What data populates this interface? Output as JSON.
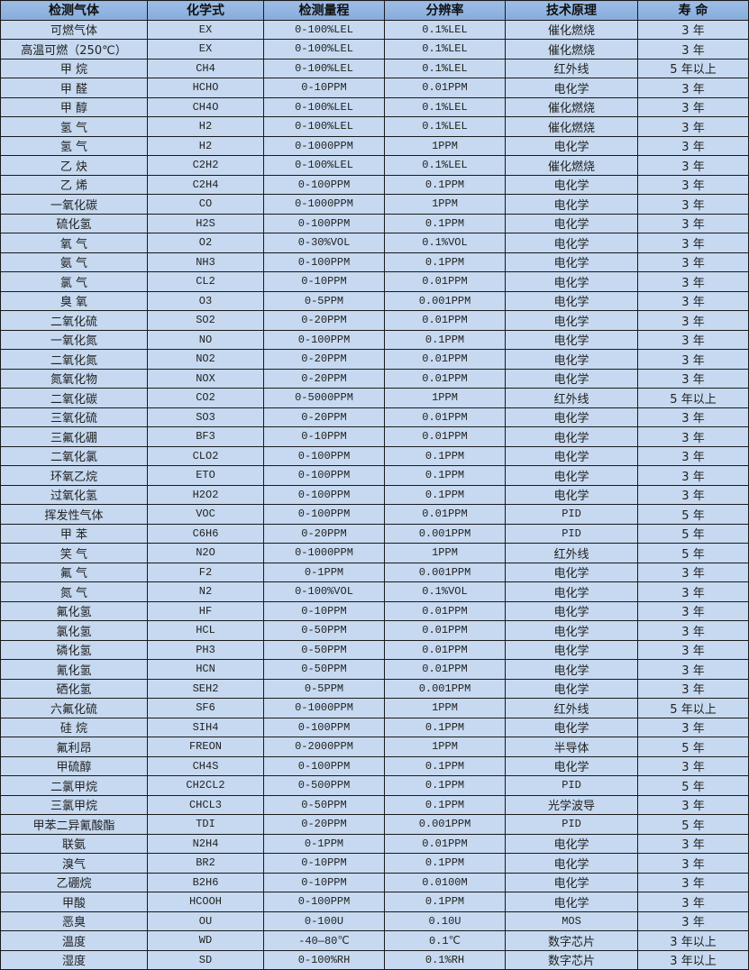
{
  "table": {
    "headers": [
      "检测气体",
      "化学式",
      "检测量程",
      "分辨率",
      "技术原理",
      "寿 命"
    ],
    "rows": [
      [
        "可燃气体",
        "EX",
        "0-100%LEL",
        "0.1%LEL",
        "催化燃烧",
        "3 年"
      ],
      [
        "高温可燃（250℃）",
        "EX",
        "0-100%LEL",
        "0.1%LEL",
        "催化燃烧",
        "3 年"
      ],
      [
        "甲 烷",
        "CH4",
        "0-100%LEL",
        "0.1%LEL",
        "红外线",
        "5 年以上"
      ],
      [
        "甲 醛",
        "HCHO",
        "0-10PPM",
        "0.01PPM",
        "电化学",
        "3 年"
      ],
      [
        "甲 醇",
        "CH4O",
        "0-100%LEL",
        "0.1%LEL",
        "催化燃烧",
        "3 年"
      ],
      [
        "氢 气",
        "H2",
        "0-100%LEL",
        "0.1%LEL",
        "催化燃烧",
        "3 年"
      ],
      [
        "氢 气",
        "H2",
        "0-1000PPM",
        "1PPM",
        "电化学",
        "3 年"
      ],
      [
        "乙 炔",
        "C2H2",
        "0-100%LEL",
        "0.1%LEL",
        "催化燃烧",
        "3 年"
      ],
      [
        "乙 烯",
        "C2H4",
        "0-100PPM",
        "0.1PPM",
        "电化学",
        "3 年"
      ],
      [
        "一氧化碳",
        "CO",
        "0-1000PPM",
        "1PPM",
        "电化学",
        "3 年"
      ],
      [
        "硫化氢",
        "H2S",
        "0-100PPM",
        "0.1PPM",
        "电化学",
        "3 年"
      ],
      [
        "氧 气",
        "O2",
        "0-30%VOL",
        "0.1%VOL",
        "电化学",
        "3 年"
      ],
      [
        "氨 气",
        "NH3",
        "0-100PPM",
        "0.1PPM",
        "电化学",
        "3 年"
      ],
      [
        "氯 气",
        "CL2",
        "0-10PPM",
        "0.01PPM",
        "电化学",
        "3 年"
      ],
      [
        "臭 氧",
        "O3",
        "0-5PPM",
        "0.001PPM",
        "电化学",
        "3 年"
      ],
      [
        "二氧化硫",
        "SO2",
        "0-20PPM",
        "0.01PPM",
        "电化学",
        "3 年"
      ],
      [
        "一氧化氮",
        "NO",
        "0-100PPM",
        "0.1PPM",
        "电化学",
        "3 年"
      ],
      [
        "二氧化氮",
        "NO2",
        "0-20PPM",
        "0.01PPM",
        "电化学",
        "3 年"
      ],
      [
        "氮氧化物",
        "NOX",
        "0-20PPM",
        "0.01PPM",
        "电化学",
        "3 年"
      ],
      [
        "二氧化碳",
        "CO2",
        "0-5000PPM",
        "1PPM",
        "红外线",
        "5 年以上"
      ],
      [
        "三氧化硫",
        "SO3",
        "0-20PPM",
        "0.01PPM",
        "电化学",
        "3 年"
      ],
      [
        "三氟化硼",
        "BF3",
        "0-10PPM",
        "0.01PPM",
        "电化学",
        "3 年"
      ],
      [
        "二氧化氯",
        "CLO2",
        "0-100PPM",
        "0.1PPM",
        "电化学",
        "3 年"
      ],
      [
        "环氧乙烷",
        "ETO",
        "0-100PPM",
        "0.1PPM",
        "电化学",
        "3 年"
      ],
      [
        "过氧化氢",
        "H2O2",
        "0-100PPM",
        "0.1PPM",
        "电化学",
        "3 年"
      ],
      [
        "挥发性气体",
        "VOC",
        "0-100PPM",
        "0.01PPM",
        "PID",
        "5 年"
      ],
      [
        "甲 苯",
        "C6H6",
        "0-20PPM",
        "0.001PPM",
        "PID",
        "5 年"
      ],
      [
        "笑 气",
        "N2O",
        "0-1000PPM",
        "1PPM",
        "红外线",
        "5 年"
      ],
      [
        "氟 气",
        "F2",
        "0-1PPM",
        "0.001PPM",
        "电化学",
        "3 年"
      ],
      [
        "氮 气",
        "N2",
        "0-100%VOL",
        "0.1%VOL",
        "电化学",
        "3 年"
      ],
      [
        "氟化氢",
        "HF",
        "0-10PPM",
        "0.01PPM",
        "电化学",
        "3 年"
      ],
      [
        "氯化氢",
        "HCL",
        "0-50PPM",
        "0.01PPM",
        "电化学",
        "3 年"
      ],
      [
        "磷化氢",
        "PH3",
        "0-50PPM",
        "0.01PPM",
        "电化学",
        "3 年"
      ],
      [
        "氰化氢",
        "HCN",
        "0-50PPM",
        "0.01PPM",
        "电化学",
        "3 年"
      ],
      [
        "硒化氢",
        "SEH2",
        "0-5PPM",
        "0.001PPM",
        "电化学",
        "3 年"
      ],
      [
        "六氟化硫",
        "SF6",
        "0-1000PPM",
        "1PPM",
        "红外线",
        "5 年以上"
      ],
      [
        "硅 烷",
        "SIH4",
        "0-100PPM",
        "0.1PPM",
        "电化学",
        "3 年"
      ],
      [
        "氟利昂",
        "FREON",
        "0-2000PPM",
        "1PPM",
        "半导体",
        "5 年"
      ],
      [
        "甲硫醇",
        "CH4S",
        "0-100PPM",
        "0.1PPM",
        "电化学",
        "3 年"
      ],
      [
        "二氯甲烷",
        "CH2CL2",
        "0-500PPM",
        "0.1PPM",
        "PID",
        "5 年"
      ],
      [
        "三氯甲烷",
        "CHCL3",
        "0-50PPM",
        "0.1PPM",
        "光学波导",
        "3 年"
      ],
      [
        "甲苯二异氰酸酯",
        "TDI",
        "0-20PPM",
        "0.001PPM",
        "PID",
        "5 年"
      ],
      [
        "联氨",
        "N2H4",
        "0-1PPM",
        "0.01PPM",
        "电化学",
        "3 年"
      ],
      [
        "溴气",
        "BR2",
        "0-10PPM",
        "0.1PPM",
        "电化学",
        "3 年"
      ],
      [
        "乙硼烷",
        "B2H6",
        "0-10PPM",
        "0.0100M",
        "电化学",
        "3 年"
      ],
      [
        "甲酸",
        "HCOOH",
        "0-100PPM",
        "0.1PPM",
        "电化学",
        "3 年"
      ],
      [
        "恶臭",
        "OU",
        "0-100U",
        "0.10U",
        "MOS",
        "3 年"
      ],
      [
        "温度",
        "WD",
        "-40—80℃",
        "0.1℃",
        "数字芯片",
        "3 年以上"
      ],
      [
        "湿度",
        "SD",
        "0-100%RH",
        "0.1%RH",
        "数字芯片",
        "3 年以上"
      ]
    ]
  },
  "colors": {
    "header_bg": "#8db3e2",
    "row_bg": "#c6d9f0",
    "border": "#1a1a1a"
  }
}
